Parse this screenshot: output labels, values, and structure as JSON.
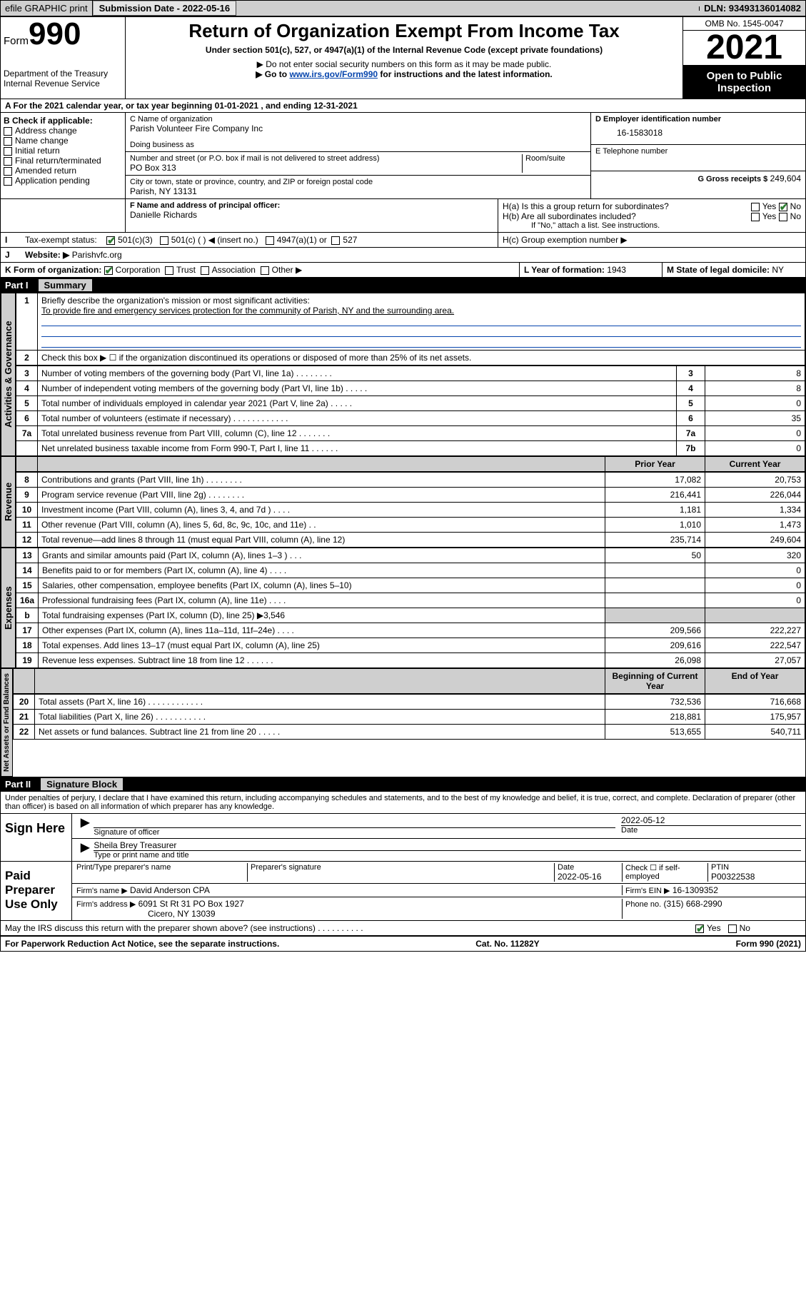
{
  "topbar": {
    "efile": "efile GRAPHIC print",
    "submission_label": "Submission Date - 2022-05-16",
    "dln": "DLN: 93493136014082"
  },
  "header": {
    "form_label": "Form",
    "form_number": "990",
    "dept": "Department of the Treasury",
    "irs": "Internal Revenue Service",
    "title": "Return of Organization Exempt From Income Tax",
    "subtitle": "Under section 501(c), 527, or 4947(a)(1) of the Internal Revenue Code (except private foundations)",
    "note1": "▶ Do not enter social security numbers on this form as it may be made public.",
    "note2_pre": "▶ Go to ",
    "note2_link": "www.irs.gov/Form990",
    "note2_post": " for instructions and the latest information.",
    "omb": "OMB No. 1545-0047",
    "year": "2021",
    "inspect": "Open to Public Inspection"
  },
  "period": {
    "text": "A For the 2021 calendar year, or tax year beginning 01-01-2021   , and ending 12-31-2021"
  },
  "sectionB": {
    "label": "B Check if applicable:",
    "items": [
      "Address change",
      "Name change",
      "Initial return",
      "Final return/terminated",
      "Amended return",
      "Application pending"
    ]
  },
  "sectionC": {
    "name_label": "C Name of organization",
    "name": "Parish Volunteer Fire Company Inc",
    "dba_label": "Doing business as",
    "dba": "",
    "street_label": "Number and street (or P.O. box if mail is not delivered to street address)",
    "room_label": "Room/suite",
    "street": "PO Box 313",
    "city_label": "City or town, state or province, country, and ZIP or foreign postal code",
    "city": "Parish, NY  13131"
  },
  "sectionD": {
    "label": "D Employer identification number",
    "ein": "16-1583018"
  },
  "sectionE": {
    "label": "E Telephone number",
    "phone": ""
  },
  "sectionG": {
    "label": "G Gross receipts $",
    "amount": "249,604"
  },
  "sectionF": {
    "label": "F Name and address of principal officer:",
    "name": "Danielle Richards"
  },
  "sectionH": {
    "a": "H(a)  Is this a group return for subordinates?",
    "b": "H(b)  Are all subordinates included?",
    "b_note": "If \"No,\" attach a list. See instructions.",
    "c": "H(c)  Group exemption number ▶",
    "yes": "Yes",
    "no": "No"
  },
  "sectionI": {
    "label": "Tax-exempt status:",
    "opts": [
      "501(c)(3)",
      "501(c) (  ) ◀ (insert no.)",
      "4947(a)(1) or",
      "527"
    ]
  },
  "sectionJ": {
    "label": "Website: ▶",
    "site": "Parishvfc.org"
  },
  "sectionK": {
    "label": "K Form of organization:",
    "opts": [
      "Corporation",
      "Trust",
      "Association",
      "Other ▶"
    ]
  },
  "sectionL": {
    "label": "L Year of formation:",
    "val": "1943"
  },
  "sectionM": {
    "label": "M State of legal domicile:",
    "val": "NY"
  },
  "part1": {
    "header": "Part I",
    "title": "Summary",
    "line1_label": "Briefly describe the organization's mission or most significant activities:",
    "line1_text": "To provide fire and emergency services protection for the community of Parish, NY and the surrounding area.",
    "line2": "Check this box ▶ ☐  if the organization discontinued its operations or disposed of more than 25% of its net assets.",
    "tabs": {
      "gov": "Activities & Governance",
      "rev": "Revenue",
      "exp": "Expenses",
      "net": "Net Assets or Fund Balances"
    },
    "gov_rows": [
      {
        "n": "3",
        "d": "Number of voting members of the governing body (Part VI, line 1a)   .   .   .   .   .   .   .   .",
        "k": "3",
        "v": "8"
      },
      {
        "n": "4",
        "d": "Number of independent voting members of the governing body (Part VI, line 1b)   .   .   .   .   .",
        "k": "4",
        "v": "8"
      },
      {
        "n": "5",
        "d": "Total number of individuals employed in calendar year 2021 (Part V, line 2a)   .   .   .   .   .",
        "k": "5",
        "v": "0"
      },
      {
        "n": "6",
        "d": "Total number of volunteers (estimate if necessary)   .   .   .   .   .   .   .   .   .   .   .   .",
        "k": "6",
        "v": "35"
      },
      {
        "n": "7a",
        "d": "Total unrelated business revenue from Part VIII, column (C), line 12   .   .   .   .   .   .   .",
        "k": "7a",
        "v": "0"
      },
      {
        "n": "",
        "d": "Net unrelated business taxable income from Form 990-T, Part I, line 11   .   .   .   .   .   .",
        "k": "7b",
        "v": "0"
      }
    ],
    "col_headers": {
      "prior": "Prior Year",
      "current": "Current Year"
    },
    "rev_rows": [
      {
        "n": "8",
        "d": "Contributions and grants (Part VIII, line 1h)   .   .   .   .   .   .   .   .",
        "p": "17,082",
        "c": "20,753"
      },
      {
        "n": "9",
        "d": "Program service revenue (Part VIII, line 2g)   .   .   .   .   .   .   .   .",
        "p": "216,441",
        "c": "226,044"
      },
      {
        "n": "10",
        "d": "Investment income (Part VIII, column (A), lines 3, 4, and 7d )   .   .   .   .",
        "p": "1,181",
        "c": "1,334"
      },
      {
        "n": "11",
        "d": "Other revenue (Part VIII, column (A), lines 5, 6d, 8c, 9c, 10c, and 11e)   .   .",
        "p": "1,010",
        "c": "1,473"
      },
      {
        "n": "12",
        "d": "Total revenue—add lines 8 through 11 (must equal Part VIII, column (A), line 12)",
        "p": "235,714",
        "c": "249,604"
      }
    ],
    "exp_rows": [
      {
        "n": "13",
        "d": "Grants and similar amounts paid (Part IX, column (A), lines 1–3 )   .   .   .",
        "p": "50",
        "c": "320"
      },
      {
        "n": "14",
        "d": "Benefits paid to or for members (Part IX, column (A), line 4)   .   .   .   .",
        "p": "",
        "c": "0"
      },
      {
        "n": "15",
        "d": "Salaries, other compensation, employee benefits (Part IX, column (A), lines 5–10)",
        "p": "",
        "c": "0"
      },
      {
        "n": "16a",
        "d": "Professional fundraising fees (Part IX, column (A), line 11e)   .   .   .   .",
        "p": "",
        "c": "0"
      },
      {
        "n": "b",
        "d": "Total fundraising expenses (Part IX, column (D), line 25) ▶3,546",
        "p": "__shade__",
        "c": "__shade__"
      },
      {
        "n": "17",
        "d": "Other expenses (Part IX, column (A), lines 11a–11d, 11f–24e)   .   .   .   .",
        "p": "209,566",
        "c": "222,227"
      },
      {
        "n": "18",
        "d": "Total expenses. Add lines 13–17 (must equal Part IX, column (A), line 25)",
        "p": "209,616",
        "c": "222,547"
      },
      {
        "n": "19",
        "d": "Revenue less expenses. Subtract line 18 from line 12   .   .   .   .   .   .",
        "p": "26,098",
        "c": "27,057"
      }
    ],
    "net_headers": {
      "beg": "Beginning of Current Year",
      "end": "End of Year"
    },
    "net_rows": [
      {
        "n": "20",
        "d": "Total assets (Part X, line 16)   .   .   .   .   .   .   .   .   .   .   .   .",
        "p": "732,536",
        "c": "716,668"
      },
      {
        "n": "21",
        "d": "Total liabilities (Part X, line 26)   .   .   .   .   .   .   .   .   .   .   .",
        "p": "218,881",
        "c": "175,957"
      },
      {
        "n": "22",
        "d": "Net assets or fund balances. Subtract line 21 from line 20   .   .   .   .   .",
        "p": "513,655",
        "c": "540,711"
      }
    ]
  },
  "part2": {
    "header": "Part II",
    "title": "Signature Block",
    "declaration": "Under penalties of perjury, I declare that I have examined this return, including accompanying schedules and statements, and to the best of my knowledge and belief, it is true, correct, and complete. Declaration of preparer (other than officer) is based on all information of which preparer has any knowledge.",
    "sign_here": "Sign Here",
    "sig_officer": "Signature of officer",
    "sig_date": "2022-05-12",
    "date_label": "Date",
    "officer_name": "Sheila Brey Treasurer",
    "type_name": "Type or print name and title",
    "paid_prep": "Paid Preparer Use Only",
    "prep_name_label": "Print/Type preparer's name",
    "prep_sig_label": "Preparer's signature",
    "prep_date_label": "Date",
    "prep_date": "2022-05-16",
    "check_if": "Check ☐ if self-employed",
    "ptin_label": "PTIN",
    "ptin": "P00322538",
    "firm_name_label": "Firm's name    ▶",
    "firm_name": "David Anderson CPA",
    "firm_ein_label": "Firm's EIN ▶",
    "firm_ein": "16-1309352",
    "firm_addr_label": "Firm's address ▶",
    "firm_addr1": "6091 St Rt 31 PO Box 1927",
    "firm_addr2": "Cicero, NY  13039",
    "phone_label": "Phone no.",
    "phone": "(315) 668-2990",
    "discuss": "May the IRS discuss this return with the preparer shown above? (see instructions)   .   .   .   .   .   .   .   .   .   .",
    "discuss_yes": "Yes",
    "discuss_no": "No"
  },
  "footer": {
    "pra": "For Paperwork Reduction Act Notice, see the separate instructions.",
    "cat": "Cat. No. 11282Y",
    "form": "Form 990 (2021)"
  },
  "colors": {
    "link": "#0645ad",
    "check": "#2e7d32",
    "shade": "#cfcfcf"
  }
}
